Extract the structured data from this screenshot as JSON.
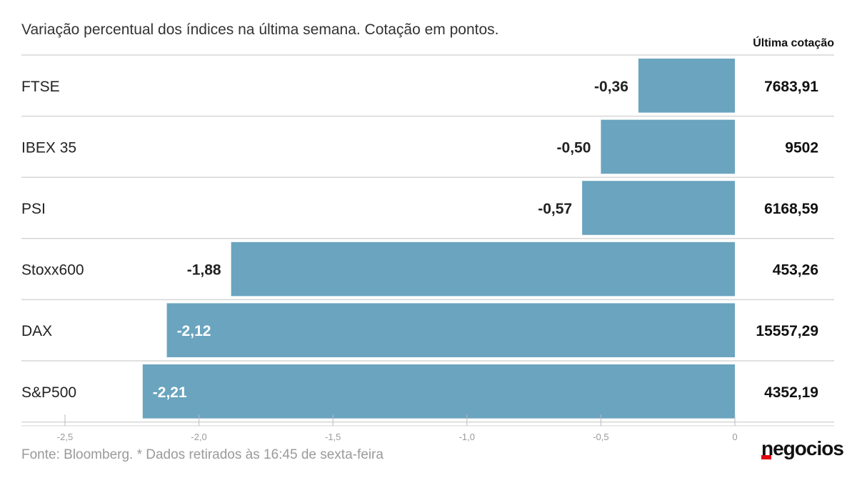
{
  "subtitle": "Variação percentual dos índices na última semana. Cotação em pontos.",
  "column_header": "Última cotação",
  "footer": {
    "source": "Fonte: Bloomberg.  * Dados retirados às 16:45 de sexta-feira"
  },
  "brand": {
    "logo_text": "negocios"
  },
  "colors": {
    "bar": "#6aa4bf",
    "gridline": "#d6d6d6",
    "axis_tick_label": "#9a9a9a",
    "label_text": "#222222",
    "brand_accent": "#e30613"
  },
  "chart_data": {
    "type": "bar",
    "orientation": "horizontal",
    "categories": [
      "FTSE",
      "IBEX 35",
      "PSI",
      "Stoxx600",
      "DAX",
      "S&P500"
    ],
    "values": [
      -0.36,
      -0.5,
      -0.57,
      -1.88,
      -2.12,
      -2.21
    ],
    "value_labels": [
      "-0,36",
      "-0,50",
      "-0,57",
      "-1,88",
      "-2,12",
      "-2,21"
    ],
    "last_quote_labels": [
      "7683,91",
      "9502",
      "6168,59",
      "453,26",
      "15557,29",
      "4352,19"
    ],
    "xlim": [
      -2.5,
      0
    ],
    "xticks": [
      -2.5,
      -2.0,
      -1.5,
      -1.0,
      -0.5,
      0
    ],
    "xtick_labels": [
      "-2,5",
      "-2,0",
      "-1,5",
      "-1,0",
      "-0,5",
      "0"
    ],
    "grid": true,
    "legend": "none"
  }
}
